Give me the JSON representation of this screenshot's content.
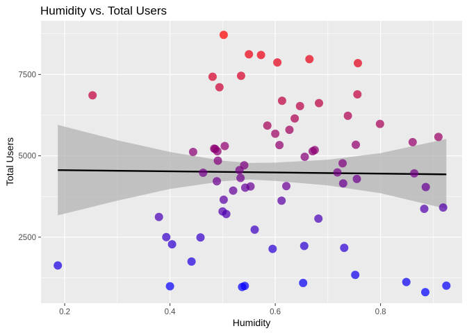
{
  "chart_data": {
    "type": "scatter",
    "title": "Humidity vs. Total Users",
    "xlabel": "Humidity",
    "ylabel": "Total Users",
    "xlim": [
      0.155,
      0.955
    ],
    "ylim": [
      470,
      9150
    ],
    "x_ticks": [
      0.2,
      0.4,
      0.6,
      0.8
    ],
    "x_tick_labels": [
      "0.2",
      "0.4",
      "0.6",
      "0.8"
    ],
    "y_ticks": [
      2500,
      5000,
      7500
    ],
    "y_tick_labels": [
      "2500",
      "5000",
      "7500"
    ],
    "grid": true,
    "legend": "none",
    "color_scale": {
      "low": "#0000ff",
      "high": "#ff0000",
      "variable": "Total Users"
    },
    "trend_line": {
      "color": "#000000",
      "points": [
        {
          "x": 0.187,
          "y": 4560
        },
        {
          "x": 0.925,
          "y": 4430
        }
      ]
    },
    "confidence_band": {
      "color": "#b3b3b3",
      "upper": [
        {
          "x": 0.187,
          "y": 5950
        },
        {
          "x": 0.3,
          "y": 5480
        },
        {
          "x": 0.4,
          "y": 5120
        },
        {
          "x": 0.5,
          "y": 4850
        },
        {
          "x": 0.55,
          "y": 4780
        },
        {
          "x": 0.6,
          "y": 4790
        },
        {
          "x": 0.7,
          "y": 4880
        },
        {
          "x": 0.8,
          "y": 5080
        },
        {
          "x": 0.925,
          "y": 5520
        }
      ],
      "lower": [
        {
          "x": 0.187,
          "y": 3170
        },
        {
          "x": 0.3,
          "y": 3620
        },
        {
          "x": 0.4,
          "y": 3980
        },
        {
          "x": 0.5,
          "y": 4220
        },
        {
          "x": 0.55,
          "y": 4270
        },
        {
          "x": 0.6,
          "y": 4230
        },
        {
          "x": 0.7,
          "y": 4090
        },
        {
          "x": 0.8,
          "y": 3850
        },
        {
          "x": 0.925,
          "y": 3370
        }
      ]
    },
    "points": [
      {
        "x": 0.187,
        "y": 1630
      },
      {
        "x": 0.253,
        "y": 6860
      },
      {
        "x": 0.379,
        "y": 3120
      },
      {
        "x": 0.393,
        "y": 2500
      },
      {
        "x": 0.4,
        "y": 990
      },
      {
        "x": 0.404,
        "y": 2280
      },
      {
        "x": 0.441,
        "y": 1750
      },
      {
        "x": 0.444,
        "y": 5120
      },
      {
        "x": 0.458,
        "y": 2490
      },
      {
        "x": 0.463,
        "y": 4480
      },
      {
        "x": 0.481,
        "y": 7430
      },
      {
        "x": 0.484,
        "y": 5220
      },
      {
        "x": 0.486,
        "y": 5210
      },
      {
        "x": 0.489,
        "y": 4220
      },
      {
        "x": 0.49,
        "y": 5140
      },
      {
        "x": 0.491,
        "y": 4850
      },
      {
        "x": 0.494,
        "y": 7110
      },
      {
        "x": 0.5,
        "y": 3290
      },
      {
        "x": 0.502,
        "y": 3650
      },
      {
        "x": 0.502,
        "y": 8720
      },
      {
        "x": 0.504,
        "y": 5300
      },
      {
        "x": 0.507,
        "y": 3210
      },
      {
        "x": 0.52,
        "y": 3930
      },
      {
        "x": 0.532,
        "y": 4560
      },
      {
        "x": 0.534,
        "y": 4320
      },
      {
        "x": 0.535,
        "y": 7460
      },
      {
        "x": 0.537,
        "y": 970
      },
      {
        "x": 0.541,
        "y": 4710
      },
      {
        "x": 0.542,
        "y": 1000
      },
      {
        "x": 0.543,
        "y": 4020
      },
      {
        "x": 0.55,
        "y": 8120
      },
      {
        "x": 0.553,
        "y": 4060
      },
      {
        "x": 0.561,
        "y": 2730
      },
      {
        "x": 0.573,
        "y": 8100
      },
      {
        "x": 0.585,
        "y": 5930
      },
      {
        "x": 0.595,
        "y": 2140
      },
      {
        "x": 0.6,
        "y": 5680
      },
      {
        "x": 0.604,
        "y": 7870
      },
      {
        "x": 0.608,
        "y": 5330
      },
      {
        "x": 0.612,
        "y": 3620
      },
      {
        "x": 0.613,
        "y": 6690
      },
      {
        "x": 0.621,
        "y": 4070
      },
      {
        "x": 0.627,
        "y": 5800
      },
      {
        "x": 0.637,
        "y": 6150
      },
      {
        "x": 0.647,
        "y": 6530
      },
      {
        "x": 0.653,
        "y": 1090
      },
      {
        "x": 0.655,
        "y": 2230
      },
      {
        "x": 0.656,
        "y": 4970
      },
      {
        "x": 0.665,
        "y": 7970
      },
      {
        "x": 0.671,
        "y": 5140
      },
      {
        "x": 0.675,
        "y": 5180
      },
      {
        "x": 0.682,
        "y": 3070
      },
      {
        "x": 0.683,
        "y": 6620
      },
      {
        "x": 0.718,
        "y": 4490
      },
      {
        "x": 0.728,
        "y": 4770
      },
      {
        "x": 0.729,
        "y": 4150
      },
      {
        "x": 0.731,
        "y": 2170
      },
      {
        "x": 0.738,
        "y": 6230
      },
      {
        "x": 0.752,
        "y": 1340
      },
      {
        "x": 0.753,
        "y": 5340
      },
      {
        "x": 0.755,
        "y": 4290
      },
      {
        "x": 0.756,
        "y": 6890
      },
      {
        "x": 0.757,
        "y": 7850
      },
      {
        "x": 0.799,
        "y": 5980
      },
      {
        "x": 0.849,
        "y": 1120
      },
      {
        "x": 0.861,
        "y": 5420
      },
      {
        "x": 0.864,
        "y": 4460
      },
      {
        "x": 0.883,
        "y": 3370
      },
      {
        "x": 0.885,
        "y": 810
      },
      {
        "x": 0.886,
        "y": 4040
      },
      {
        "x": 0.91,
        "y": 5580
      },
      {
        "x": 0.919,
        "y": 3410
      },
      {
        "x": 0.925,
        "y": 1010
      }
    ]
  }
}
